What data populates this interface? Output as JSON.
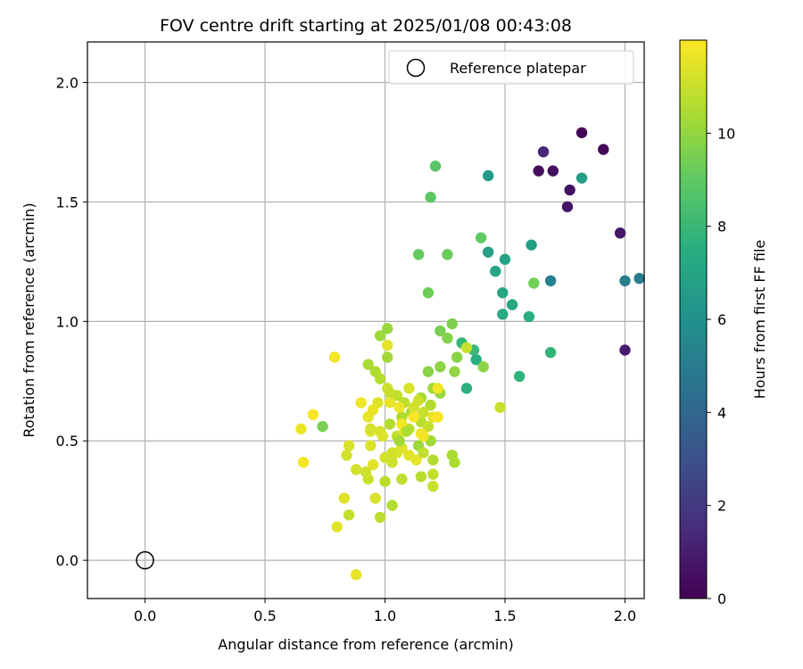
{
  "chart_data": {
    "type": "scatter",
    "title": "FOV centre drift starting at 2025/01/08 00:43:08",
    "xlabel": "Angular distance from reference (arcmin)",
    "ylabel": "Rotation from reference (arcmin)",
    "xlim": [
      -0.24,
      2.08
    ],
    "ylim": [
      -0.16,
      2.17
    ],
    "xticks": [
      0.0,
      0.5,
      1.0,
      1.5,
      2.0
    ],
    "yticks": [
      0.0,
      0.5,
      1.0,
      1.5,
      2.0
    ],
    "xtick_labels": [
      "0.0",
      "0.5",
      "1.0",
      "1.5",
      "2.0"
    ],
    "ytick_labels": [
      "0.0",
      "0.5",
      "1.0",
      "1.5",
      "2.0"
    ],
    "grid": true,
    "legend": {
      "placement": "top-right",
      "entries": [
        "Reference platepar"
      ]
    },
    "reference_point": {
      "name": "Reference platepar",
      "x": 0.0,
      "y": 0.0
    },
    "colorbar": {
      "label": "Hours from first FF file",
      "range": [
        0,
        12
      ],
      "ticks": [
        0,
        2,
        4,
        6,
        8,
        10
      ],
      "tick_labels": [
        "0",
        "2",
        "4",
        "6",
        "8",
        "10"
      ],
      "colormap": "viridis"
    },
    "points": [
      [
        1.82,
        1.79,
        0.1
      ],
      [
        1.91,
        1.72,
        0.2
      ],
      [
        1.66,
        1.71,
        1.3
      ],
      [
        1.64,
        1.63,
        0.4
      ],
      [
        1.7,
        1.63,
        0.5
      ],
      [
        1.77,
        1.55,
        0.6
      ],
      [
        1.76,
        1.48,
        0.7
      ],
      [
        1.98,
        1.37,
        0.8
      ],
      [
        2.0,
        0.88,
        0.9
      ],
      [
        2.06,
        1.18,
        5.0
      ],
      [
        2.0,
        1.17,
        5.1
      ],
      [
        1.69,
        1.17,
        5.2
      ],
      [
        1.43,
        1.61,
        6.5
      ],
      [
        1.82,
        1.6,
        6.6
      ],
      [
        1.61,
        1.32,
        6.7
      ],
      [
        1.43,
        1.29,
        6.8
      ],
      [
        1.5,
        1.26,
        6.9
      ],
      [
        1.46,
        1.21,
        7.0
      ],
      [
        1.49,
        1.12,
        7.1
      ],
      [
        1.53,
        1.07,
        7.2
      ],
      [
        1.49,
        1.03,
        7.3
      ],
      [
        1.6,
        1.02,
        7.4
      ],
      [
        1.38,
        0.84,
        7.5
      ],
      [
        1.34,
        0.72,
        7.6
      ],
      [
        1.56,
        0.77,
        7.7
      ],
      [
        1.69,
        0.87,
        7.8
      ],
      [
        1.32,
        0.91,
        7.9
      ],
      [
        1.37,
        0.88,
        8.0
      ],
      [
        1.21,
        1.65,
        8.8
      ],
      [
        1.19,
        1.52,
        8.9
      ],
      [
        1.4,
        1.35,
        9.0
      ],
      [
        1.14,
        1.28,
        9.1
      ],
      [
        1.26,
        1.28,
        9.2
      ],
      [
        1.18,
        1.12,
        9.3
      ],
      [
        1.62,
        1.16,
        9.4
      ],
      [
        1.23,
        0.96,
        9.5
      ],
      [
        1.28,
        0.99,
        9.6
      ],
      [
        1.26,
        0.93,
        9.7
      ],
      [
        1.3,
        0.85,
        9.8
      ],
      [
        1.41,
        0.81,
        9.9
      ],
      [
        1.29,
        0.79,
        10.0
      ],
      [
        1.18,
        0.79,
        9.8
      ],
      [
        1.23,
        0.81,
        9.9
      ],
      [
        1.01,
        0.97,
        10.1
      ],
      [
        0.98,
        0.94,
        10.2
      ],
      [
        1.01,
        0.85,
        10.3
      ],
      [
        0.93,
        0.82,
        10.4
      ],
      [
        0.96,
        0.79,
        10.5
      ],
      [
        0.98,
        0.76,
        10.6
      ],
      [
        1.2,
        0.72,
        10.2
      ],
      [
        1.23,
        0.7,
        10.1
      ],
      [
        1.15,
        0.68,
        10.3
      ],
      [
        1.11,
        0.62,
        10.4
      ],
      [
        1.07,
        0.6,
        10.5
      ],
      [
        1.19,
        0.65,
        10.6
      ],
      [
        1.15,
        0.58,
        10.7
      ],
      [
        1.1,
        0.55,
        10.8
      ],
      [
        1.05,
        0.52,
        10.9
      ],
      [
        1.14,
        0.48,
        10.2
      ],
      [
        1.19,
        0.5,
        10.3
      ],
      [
        1.28,
        0.44,
        10.4
      ],
      [
        1.29,
        0.41,
        10.5
      ],
      [
        1.2,
        0.42,
        10.6
      ],
      [
        1.15,
        0.35,
        10.7
      ],
      [
        1.07,
        0.34,
        10.8
      ],
      [
        1.2,
        0.36,
        10.9
      ],
      [
        1.2,
        0.31,
        11.0
      ],
      [
        1.03,
        0.41,
        11.1
      ],
      [
        1.0,
        0.43,
        11.2
      ],
      [
        0.98,
        0.54,
        11.3
      ],
      [
        0.99,
        0.52,
        11.4
      ],
      [
        0.95,
        0.4,
        11.5
      ],
      [
        0.74,
        0.56,
        9.5
      ],
      [
        1.03,
        0.23,
        10.6
      ],
      [
        1.0,
        0.33,
        10.7
      ],
      [
        0.98,
        0.18,
        10.8
      ],
      [
        0.85,
        0.19,
        10.9
      ],
      [
        0.93,
        0.34,
        11.0
      ],
      [
        0.92,
        0.37,
        11.1
      ],
      [
        0.88,
        0.38,
        11.2
      ],
      [
        0.96,
        0.26,
        11.3
      ],
      [
        0.83,
        0.26,
        11.4
      ],
      [
        0.8,
        0.14,
        11.5
      ],
      [
        0.88,
        -0.06,
        11.6
      ],
      [
        0.65,
        0.55,
        11.7
      ],
      [
        0.66,
        0.41,
        11.8
      ],
      [
        0.7,
        0.61,
        11.9
      ],
      [
        0.79,
        0.85,
        11.8
      ],
      [
        0.9,
        0.66,
        11.7
      ],
      [
        0.93,
        0.6,
        11.6
      ],
      [
        0.94,
        0.54,
        11.5
      ],
      [
        0.94,
        0.48,
        11.4
      ],
      [
        0.85,
        0.48,
        11.3
      ],
      [
        0.84,
        0.44,
        11.2
      ],
      [
        1.01,
        0.72,
        11.1
      ],
      [
        1.02,
        0.7,
        11.0
      ],
      [
        1.05,
        0.69,
        10.9
      ],
      [
        1.08,
        0.66,
        10.8
      ],
      [
        1.06,
        0.64,
        11.7
      ],
      [
        1.02,
        0.66,
        11.6
      ],
      [
        1.01,
        0.9,
        11.5
      ],
      [
        0.97,
        0.66,
        11.4
      ],
      [
        1.1,
        0.72,
        11.3
      ],
      [
        1.12,
        0.64,
        11.2
      ],
      [
        1.14,
        0.67,
        11.1
      ],
      [
        1.16,
        0.62,
        11.0
      ],
      [
        1.18,
        0.56,
        10.9
      ],
      [
        1.2,
        0.6,
        11.6
      ],
      [
        1.22,
        0.6,
        11.9
      ],
      [
        1.22,
        0.72,
        11.8
      ],
      [
        1.16,
        0.52,
        11.7
      ],
      [
        1.13,
        0.42,
        11.6
      ],
      [
        1.1,
        0.44,
        11.5
      ],
      [
        1.07,
        0.47,
        11.4
      ],
      [
        1.05,
        0.45,
        11.3
      ],
      [
        1.03,
        0.45,
        11.2
      ],
      [
        1.08,
        0.54,
        11.7
      ],
      [
        1.07,
        0.57,
        11.8
      ],
      [
        1.12,
        0.6,
        11.9
      ],
      [
        1.15,
        0.53,
        11.8
      ],
      [
        1.34,
        0.89,
        11.0
      ],
      [
        1.48,
        0.64,
        11.0
      ],
      [
        0.95,
        0.63,
        11.6
      ],
      [
        0.94,
        0.55,
        11.2
      ],
      [
        1.16,
        0.45,
        10.9
      ],
      [
        1.02,
        0.57,
        10.6
      ],
      [
        1.09,
        0.54,
        10.5
      ],
      [
        1.06,
        0.5,
        10.3
      ]
    ]
  }
}
